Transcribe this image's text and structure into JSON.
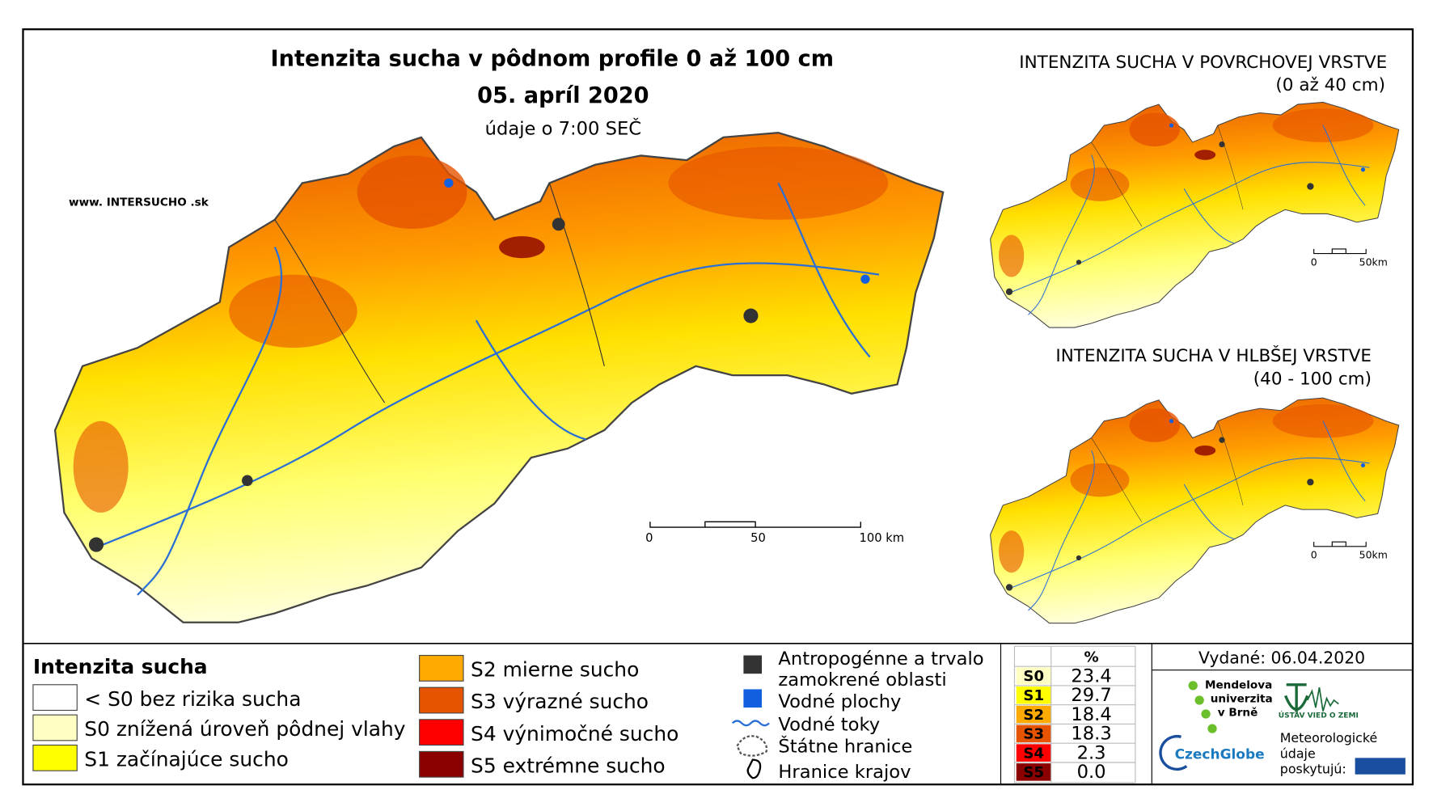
{
  "main_map": {
    "title": "Intenzita sucha v pôdnom profile 0 až 100 cm",
    "date": "05. apríl 2020",
    "note": "údaje o 7:00 SEČ",
    "website": "www. INTERSUCHO .sk",
    "scale": [
      "0",
      "50",
      "100 km"
    ]
  },
  "inset_top": {
    "title": "INTENZITA SUCHA V POVRCHOVEJ VRSTVE",
    "subtitle": "(0 až 40 cm)",
    "scale": [
      "0",
      "50km"
    ]
  },
  "inset_bottom": {
    "title": "INTENZITA SUCHA V HLBŠEJ VRSTVE",
    "subtitle": "(40 - 100 cm)",
    "scale": [
      "0",
      "50km"
    ]
  },
  "legend": {
    "title": "Intenzita sucha",
    "classes": [
      {
        "label": "< S0 bez rizika sucha",
        "color": "#ffffff"
      },
      {
        "label": "S0 znížená úroveň pôdnej vlahy",
        "color": "#ffffc4"
      },
      {
        "label": "S1 začínajúce sucho",
        "color": "#ffff00"
      },
      {
        "label": "S2 mierne sucho",
        "color": "#ffaa00"
      },
      {
        "label": "S3 výrazné sucho",
        "color": "#e65400"
      },
      {
        "label": "S4 výnimočné sucho",
        "color": "#ff0000"
      },
      {
        "label": "S5 extrémne sucho",
        "color": "#8b0000"
      }
    ]
  },
  "layers": [
    "Antropogénne a trvalo zamokrené oblasti",
    "Vodné plochy",
    "Vodné toky",
    "Štátne hranice",
    "Hranice krajov"
  ],
  "stats": {
    "header": "%",
    "rows": [
      {
        "class": "S0",
        "value": "23.4",
        "color": "#ffffc4"
      },
      {
        "class": "S1",
        "value": "29.7",
        "color": "#ffff00"
      },
      {
        "class": "S2",
        "value": "18.4",
        "color": "#ffaa00"
      },
      {
        "class": "S3",
        "value": "18.3",
        "color": "#e65400"
      },
      {
        "class": "S4",
        "value": "2.3",
        "color": "#ff0000"
      },
      {
        "class": "S5",
        "value": "0.0",
        "color": "#8b0000"
      }
    ]
  },
  "issued": "Vydané: 06.04.2020",
  "logos": {
    "mendel": "Mendelova univerzita v Brně",
    "ustav": "ÚSTAV VIED O ZEMI",
    "czechglobe": "CzechGlobe",
    "meteo": "Meteorologické údaje poskytujú:"
  }
}
